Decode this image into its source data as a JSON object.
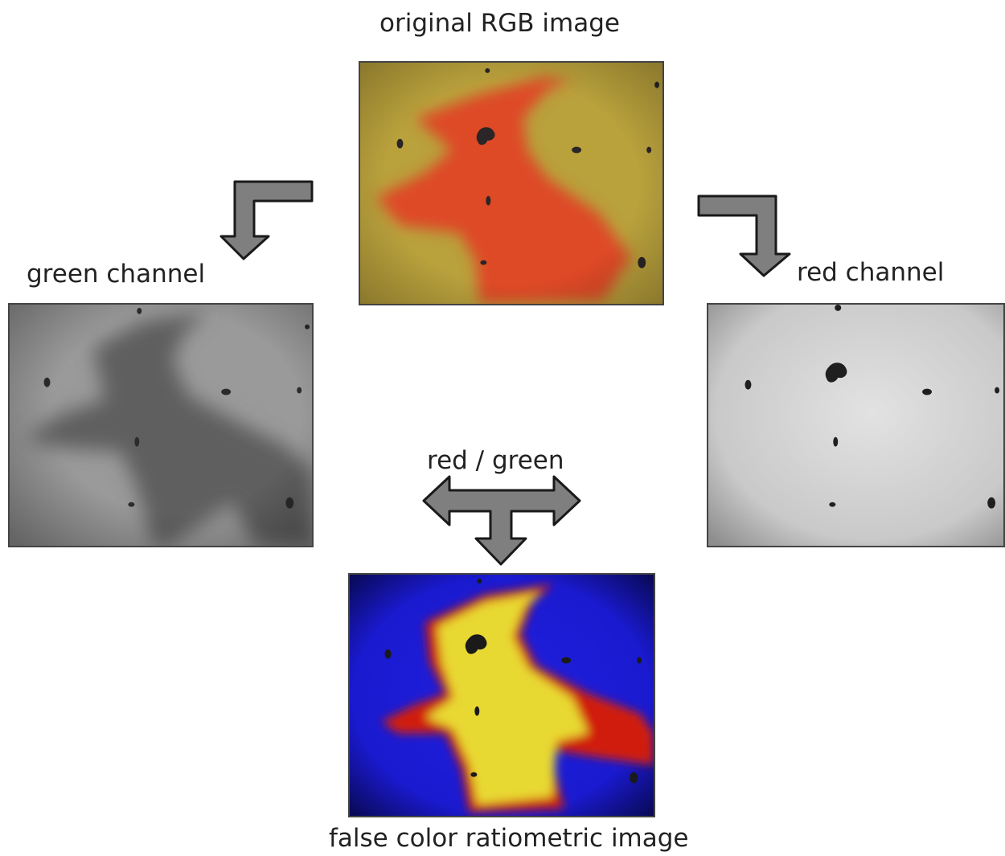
{
  "labels": {
    "original": "original RGB image",
    "green": "green channel",
    "red": "red channel",
    "ratio": "red / green",
    "false_color": "false color ratiometric image"
  }
}
